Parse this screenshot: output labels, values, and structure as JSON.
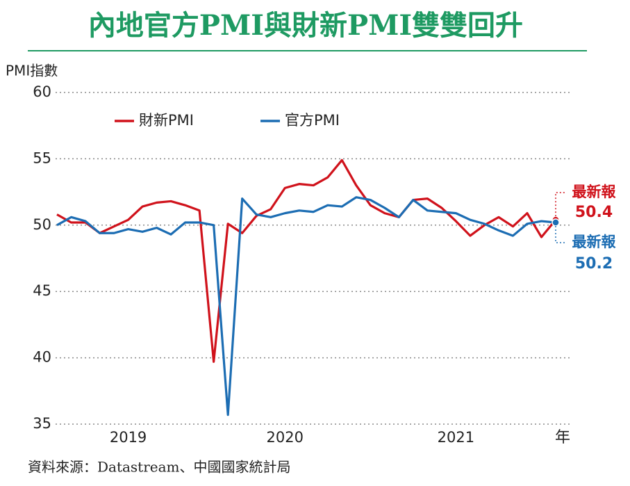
{
  "chart_data": {
    "type": "line",
    "title": "內地官方PMI與財新PMI雙雙回升",
    "y_label": "PMI指數",
    "x_label": "年",
    "source": "資料來源：Datastream、中國國家統計局",
    "categories": [
      null,
      null,
      null,
      null,
      null,
      "2019",
      null,
      null,
      null,
      null,
      null,
      null,
      null,
      null,
      null,
      null,
      "2020",
      null,
      null,
      null,
      null,
      null,
      null,
      null,
      null,
      null,
      null,
      null,
      "2021",
      null,
      null,
      null,
      null,
      null,
      null,
      null
    ],
    "ylim": [
      35,
      60
    ],
    "yticks": [
      35,
      40,
      45,
      50,
      55,
      60
    ],
    "grid": true,
    "series": [
      {
        "name": "財新PMI",
        "color": "#d0121b",
        "values": [
          50.8,
          50.2,
          50.2,
          49.4,
          49.9,
          50.4,
          51.4,
          51.7,
          51.8,
          51.5,
          51.1,
          39.7,
          50.1,
          49.4,
          50.7,
          51.2,
          52.8,
          53.1,
          53.0,
          53.6,
          54.9,
          53.0,
          51.5,
          50.9,
          50.6,
          51.9,
          52.0,
          51.3,
          50.3,
          49.2,
          50.0,
          50.6,
          49.9,
          50.9,
          49.1,
          50.4
        ]
      },
      {
        "name": "官方PMI",
        "color": "#1c6db3",
        "values": [
          50.0,
          50.6,
          50.3,
          49.4,
          49.4,
          49.7,
          49.5,
          49.8,
          49.3,
          50.2,
          50.2,
          50.0,
          35.7,
          52.0,
          50.8,
          50.6,
          50.9,
          51.1,
          51.0,
          51.5,
          51.4,
          52.1,
          51.9,
          51.3,
          50.6,
          51.9,
          51.1,
          51.0,
          50.9,
          50.4,
          50.1,
          49.6,
          49.2,
          50.1,
          50.3,
          50.2
        ]
      }
    ],
    "annotations": [
      {
        "label": "最新報",
        "value": "50.4"
      },
      {
        "label": "最新報",
        "value": "50.2"
      }
    ]
  }
}
